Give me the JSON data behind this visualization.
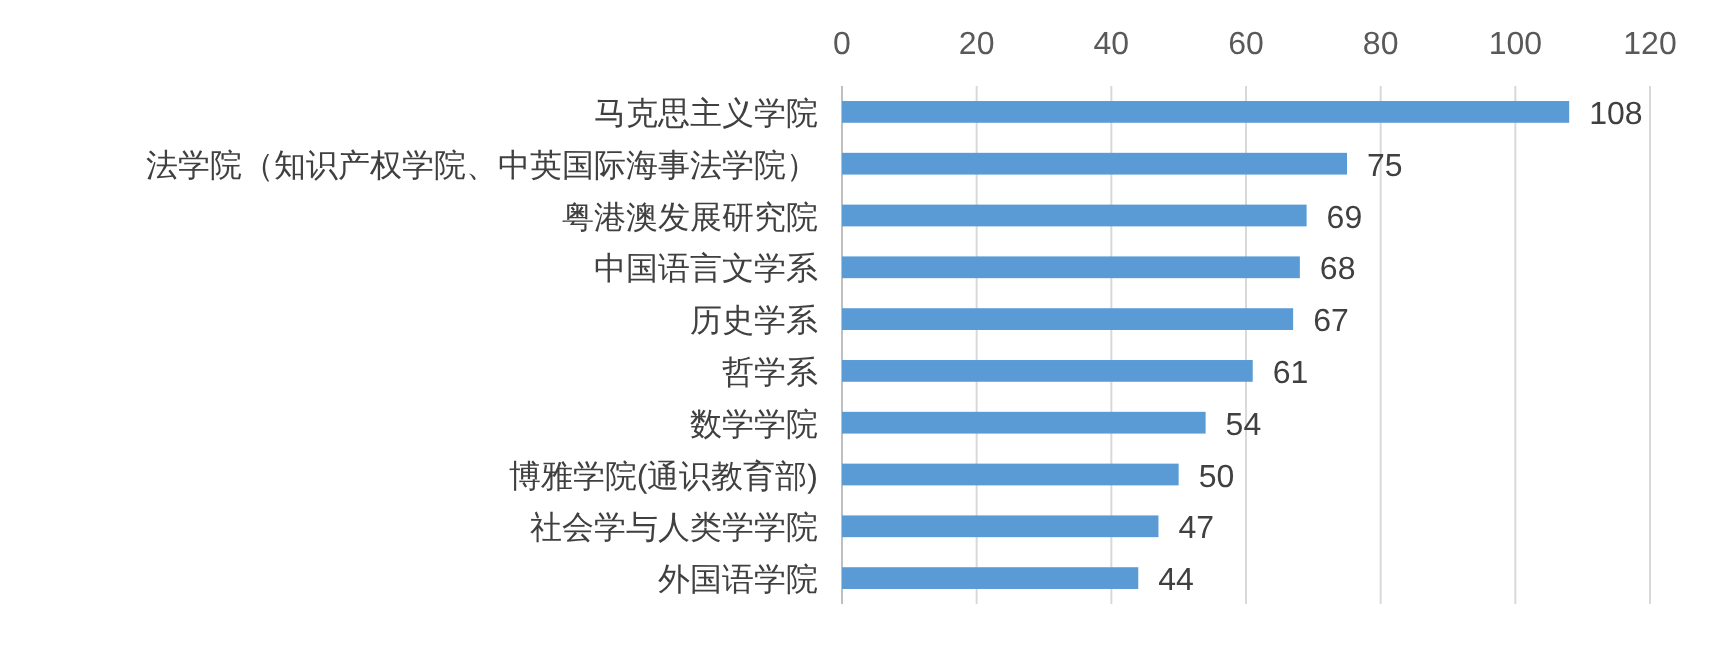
{
  "chart_data": {
    "type": "bar",
    "orientation": "horizontal",
    "categories": [
      "马克思主义学院",
      "法学院（知识产权学院、中英国际海事法学院）",
      "粤港澳发展研究院",
      "中国语言文学系",
      "历史学系",
      "哲学系",
      "数学学院",
      "博雅学院(通识教育部)",
      "社会学与人类学学院",
      "外国语学院"
    ],
    "values": [
      108,
      75,
      69,
      68,
      67,
      61,
      54,
      50,
      47,
      44
    ],
    "color": "#5b9bd5",
    "xlim": [
      0,
      120
    ],
    "xticks": [
      0,
      20,
      40,
      60,
      80,
      100,
      120
    ],
    "grid": "x",
    "data_labels": true
  }
}
